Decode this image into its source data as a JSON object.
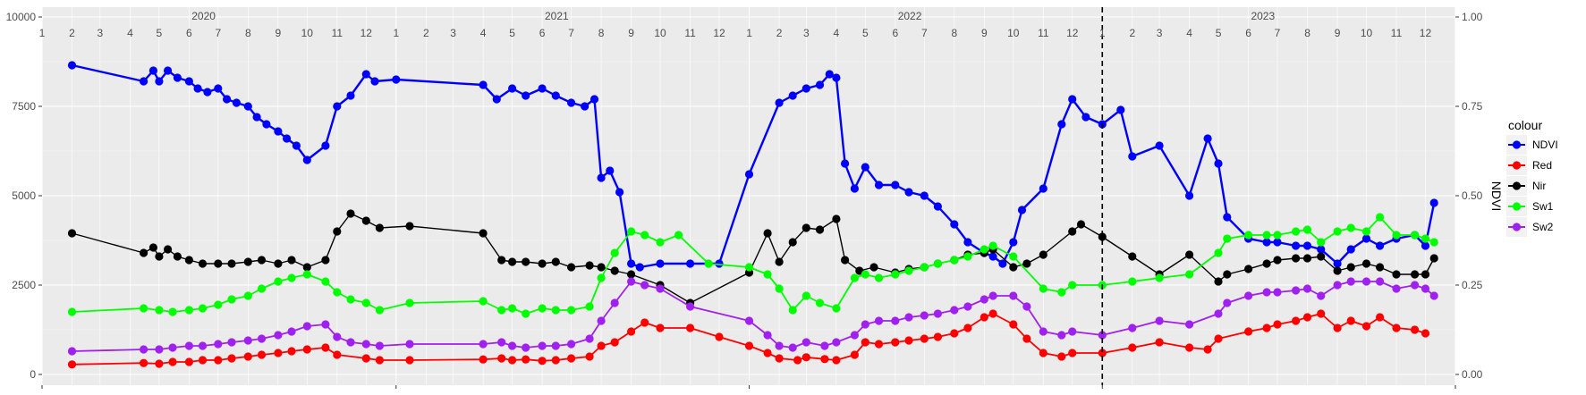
{
  "chart_data": {
    "type": "line",
    "title": "",
    "xlabel": "",
    "ylabel": "",
    "y2label": "NDVI",
    "xlim": [
      "2020-01-01",
      "2024-01-01"
    ],
    "ylim": [
      0,
      10000
    ],
    "y2lim": [
      0,
      1
    ],
    "y_ticks": [
      0,
      2500,
      5000,
      7500,
      10000
    ],
    "y_tick_labels": [
      "0",
      "2500",
      "5000",
      "7500",
      "10000"
    ],
    "y2_ticks": [
      0,
      0.25,
      0.5,
      0.75,
      1
    ],
    "y2_tick_labels": [
      "0.00",
      "0.25",
      "0.50",
      "0.75",
      "1.00"
    ],
    "years": [
      "2020",
      "2021",
      "2022",
      "2023"
    ],
    "months": [
      "1",
      "2",
      "3",
      "4",
      "5",
      "6",
      "7",
      "8",
      "9",
      "10",
      "11",
      "12"
    ],
    "vline_date": "2023-01-01",
    "grid": true,
    "legend_title": "colour",
    "legend_position": "right",
    "series": [
      {
        "name": "NDVI",
        "color": "#0000FF",
        "axis": "right",
        "x": [
          "2020-02-01",
          "2020-04-15",
          "2020-04-25",
          "2020-05-01",
          "2020-05-10",
          "2020-05-20",
          "2020-06-01",
          "2020-06-10",
          "2020-06-20",
          "2020-07-01",
          "2020-07-10",
          "2020-07-20",
          "2020-08-01",
          "2020-08-10",
          "2020-08-20",
          "2020-09-01",
          "2020-09-10",
          "2020-09-20",
          "2020-10-01",
          "2020-10-20",
          "2020-11-01",
          "2020-11-15",
          "2020-12-01",
          "2020-12-10",
          "2021-01-01",
          "2021-04-01",
          "2021-04-15",
          "2021-05-01",
          "2021-05-15",
          "2021-06-01",
          "2021-06-15",
          "2021-07-01",
          "2021-07-15",
          "2021-07-25",
          "2021-08-01",
          "2021-08-10",
          "2021-08-20",
          "2021-09-01",
          "2021-09-10",
          "2021-10-01",
          "2021-11-01",
          "2021-12-01",
          "2022-01-01",
          "2022-02-01",
          "2022-02-15",
          "2022-03-01",
          "2022-03-15",
          "2022-03-25",
          "2022-04-01",
          "2022-04-10",
          "2022-04-20",
          "2022-05-01",
          "2022-05-15",
          "2022-06-01",
          "2022-06-15",
          "2022-07-01",
          "2022-07-15",
          "2022-08-01",
          "2022-08-15",
          "2022-09-01",
          "2022-09-10",
          "2022-09-20",
          "2022-10-01",
          "2022-10-10",
          "2022-11-01",
          "2022-11-20",
          "2022-12-01",
          "2022-12-15",
          "2023-01-01",
          "2023-01-20",
          "2023-02-01",
          "2023-03-01",
          "2023-04-01",
          "2023-04-20",
          "2023-05-01",
          "2023-05-10",
          "2023-06-01",
          "2023-06-20",
          "2023-07-01",
          "2023-07-20",
          "2023-08-01",
          "2023-08-15",
          "2023-09-01",
          "2023-09-15",
          "2023-10-01",
          "2023-10-15",
          "2023-11-01",
          "2023-11-20",
          "2023-12-01",
          "2023-12-10"
        ],
        "values": [
          0.865,
          0.82,
          0.85,
          0.82,
          0.85,
          0.83,
          0.82,
          0.8,
          0.79,
          0.8,
          0.77,
          0.76,
          0.75,
          0.72,
          0.7,
          0.68,
          0.66,
          0.64,
          0.6,
          0.64,
          0.75,
          0.78,
          0.84,
          0.82,
          0.825,
          0.81,
          0.77,
          0.8,
          0.78,
          0.8,
          0.78,
          0.76,
          0.75,
          0.77,
          0.55,
          0.57,
          0.51,
          0.31,
          0.3,
          0.31,
          0.31,
          0.31,
          0.56,
          0.76,
          0.78,
          0.8,
          0.81,
          0.84,
          0.83,
          0.59,
          0.52,
          0.58,
          0.53,
          0.53,
          0.51,
          0.5,
          0.47,
          0.42,
          0.37,
          0.34,
          0.33,
          0.31,
          0.37,
          0.46,
          0.52,
          0.7,
          0.77,
          0.72,
          0.7,
          0.74,
          0.61,
          0.64,
          0.5,
          0.66,
          0.59,
          0.44,
          0.38,
          0.37,
          0.37,
          0.36,
          0.36,
          0.35,
          0.31,
          0.35,
          0.38,
          0.36,
          0.38,
          0.39,
          0.36,
          0.48
        ]
      },
      {
        "name": "Red",
        "color": "#FF0000",
        "axis": "left",
        "x": [
          "2020-02-01",
          "2020-04-15",
          "2020-05-01",
          "2020-05-15",
          "2020-06-01",
          "2020-06-15",
          "2020-07-01",
          "2020-07-15",
          "2020-08-01",
          "2020-08-15",
          "2020-09-01",
          "2020-09-15",
          "2020-10-01",
          "2020-10-20",
          "2020-11-01",
          "2020-12-01",
          "2020-12-15",
          "2021-01-15",
          "2021-04-01",
          "2021-04-20",
          "2021-05-01",
          "2021-05-15",
          "2021-06-01",
          "2021-06-15",
          "2021-07-01",
          "2021-07-20",
          "2021-08-01",
          "2021-08-15",
          "2021-09-01",
          "2021-09-15",
          "2021-10-01",
          "2021-11-01",
          "2021-12-01",
          "2022-01-01",
          "2022-01-20",
          "2022-02-01",
          "2022-02-20",
          "2022-03-01",
          "2022-03-20",
          "2022-04-01",
          "2022-04-20",
          "2022-05-01",
          "2022-05-15",
          "2022-06-01",
          "2022-06-15",
          "2022-07-01",
          "2022-07-15",
          "2022-08-01",
          "2022-08-15",
          "2022-09-01",
          "2022-09-10",
          "2022-10-01",
          "2022-10-15",
          "2022-11-01",
          "2022-11-20",
          "2022-12-01",
          "2023-01-01",
          "2023-02-01",
          "2023-03-01",
          "2023-04-01",
          "2023-04-20",
          "2023-05-01",
          "2023-06-01",
          "2023-06-20",
          "2023-07-01",
          "2023-07-20",
          "2023-08-01",
          "2023-08-15",
          "2023-09-01",
          "2023-09-15",
          "2023-10-01",
          "2023-10-15",
          "2023-11-01",
          "2023-11-20",
          "2023-12-01"
        ],
        "values": [
          280,
          320,
          300,
          350,
          350,
          400,
          400,
          450,
          500,
          550,
          600,
          650,
          700,
          750,
          550,
          450,
          400,
          400,
          420,
          450,
          400,
          420,
          380,
          400,
          450,
          500,
          800,
          900,
          1200,
          1450,
          1300,
          1300,
          1050,
          800,
          600,
          450,
          400,
          480,
          430,
          400,
          550,
          900,
          850,
          900,
          950,
          1000,
          1050,
          1150,
          1300,
          1600,
          1700,
          1400,
          1000,
          600,
          500,
          600,
          600,
          750,
          900,
          750,
          700,
          1000,
          1200,
          1300,
          1400,
          1500,
          1600,
          1700,
          1300,
          1500,
          1350,
          1600,
          1300,
          1250,
          1150
        ]
      },
      {
        "name": "Nir",
        "color": "#000000",
        "axis": "left",
        "x": [
          "2020-02-01",
          "2020-04-15",
          "2020-04-25",
          "2020-05-01",
          "2020-05-10",
          "2020-05-20",
          "2020-06-01",
          "2020-06-15",
          "2020-07-01",
          "2020-07-15",
          "2020-08-01",
          "2020-08-15",
          "2020-09-01",
          "2020-09-15",
          "2020-10-01",
          "2020-10-20",
          "2020-11-01",
          "2020-11-15",
          "2020-12-01",
          "2020-12-15",
          "2021-01-15",
          "2021-04-01",
          "2021-04-20",
          "2021-05-01",
          "2021-05-15",
          "2021-06-01",
          "2021-06-15",
          "2021-07-01",
          "2021-07-20",
          "2021-08-01",
          "2021-08-15",
          "2021-09-01",
          "2021-10-01",
          "2021-11-01",
          "2022-01-01",
          "2022-01-20",
          "2022-02-01",
          "2022-02-15",
          "2022-03-01",
          "2022-03-15",
          "2022-04-01",
          "2022-04-10",
          "2022-04-25",
          "2022-05-10",
          "2022-06-01",
          "2022-06-15",
          "2022-07-01",
          "2022-07-15",
          "2022-08-01",
          "2022-08-15",
          "2022-09-01",
          "2022-09-10",
          "2022-10-01",
          "2022-10-15",
          "2022-11-01",
          "2022-12-01",
          "2022-12-10",
          "2023-01-01",
          "2023-02-01",
          "2023-03-01",
          "2023-04-01",
          "2023-05-01",
          "2023-05-10",
          "2023-06-01",
          "2023-06-20",
          "2023-07-01",
          "2023-07-20",
          "2023-08-01",
          "2023-08-15",
          "2023-09-01",
          "2023-09-15",
          "2023-10-01",
          "2023-10-15",
          "2023-11-01",
          "2023-11-20",
          "2023-12-01",
          "2023-12-10"
        ],
        "values": [
          3950,
          3400,
          3550,
          3300,
          3500,
          3300,
          3200,
          3100,
          3100,
          3100,
          3150,
          3200,
          3100,
          3200,
          3000,
          3200,
          4000,
          4500,
          4300,
          4100,
          4150,
          3950,
          3200,
          3150,
          3150,
          3100,
          3150,
          3000,
          3050,
          3000,
          2900,
          2800,
          2500,
          2000,
          2850,
          3950,
          3150,
          3700,
          4100,
          4050,
          4350,
          3200,
          2900,
          3000,
          2850,
          2950,
          3000,
          3100,
          3200,
          3350,
          3400,
          3500,
          3000,
          3100,
          3350,
          4000,
          4200,
          3850,
          3300,
          2800,
          3350,
          2600,
          2800,
          2950,
          3100,
          3200,
          3250,
          3250,
          3300,
          2900,
          3000,
          3100,
          3000,
          2800,
          2800,
          2800,
          3250
        ]
      },
      {
        "name": "Sw1",
        "color": "#00FF00",
        "axis": "left",
        "x": [
          "2020-02-01",
          "2020-04-15",
          "2020-05-01",
          "2020-05-15",
          "2020-06-01",
          "2020-06-15",
          "2020-07-01",
          "2020-07-15",
          "2020-08-01",
          "2020-08-15",
          "2020-09-01",
          "2020-09-15",
          "2020-10-01",
          "2020-10-20",
          "2020-11-01",
          "2020-11-15",
          "2020-12-01",
          "2020-12-15",
          "2021-01-15",
          "2021-04-01",
          "2021-04-20",
          "2021-05-01",
          "2021-05-15",
          "2021-06-01",
          "2021-06-15",
          "2021-07-01",
          "2021-07-20",
          "2021-08-01",
          "2021-08-15",
          "2021-09-01",
          "2021-09-15",
          "2021-10-01",
          "2021-10-20",
          "2021-11-20",
          "2022-01-01",
          "2022-01-20",
          "2022-02-01",
          "2022-02-15",
          "2022-03-01",
          "2022-03-15",
          "2022-04-01",
          "2022-04-20",
          "2022-05-01",
          "2022-05-15",
          "2022-06-01",
          "2022-06-15",
          "2022-07-01",
          "2022-07-15",
          "2022-08-01",
          "2022-08-15",
          "2022-09-01",
          "2022-09-10",
          "2022-10-01",
          "2022-11-01",
          "2022-11-20",
          "2022-12-01",
          "2023-01-01",
          "2023-02-01",
          "2023-03-01",
          "2023-04-01",
          "2023-05-01",
          "2023-05-10",
          "2023-06-01",
          "2023-06-20",
          "2023-07-01",
          "2023-07-20",
          "2023-08-01",
          "2023-08-15",
          "2023-09-01",
          "2023-09-15",
          "2023-10-01",
          "2023-10-15",
          "2023-11-01",
          "2023-11-20",
          "2023-12-01",
          "2023-12-10"
        ],
        "values": [
          1750,
          1850,
          1800,
          1750,
          1800,
          1850,
          1950,
          2100,
          2200,
          2400,
          2600,
          2700,
          2800,
          2600,
          2300,
          2100,
          2000,
          1800,
          2000,
          2050,
          1800,
          1850,
          1700,
          1850,
          1800,
          1800,
          1900,
          2700,
          3400,
          4000,
          3900,
          3700,
          3900,
          3100,
          3000,
          2800,
          2400,
          1800,
          2200,
          2000,
          1850,
          2700,
          2800,
          2700,
          2800,
          2900,
          3000,
          3100,
          3200,
          3300,
          3500,
          3600,
          3300,
          2400,
          2300,
          2500,
          2500,
          2600,
          2700,
          2800,
          3400,
          3800,
          3900,
          3900,
          3900,
          4000,
          4050,
          3700,
          4000,
          4100,
          4000,
          4400,
          3900,
          3900,
          3800,
          3700
        ]
      },
      {
        "name": "Sw2",
        "color": "#A020F0",
        "axis": "left",
        "x": [
          "2020-02-01",
          "2020-04-15",
          "2020-05-01",
          "2020-05-15",
          "2020-06-01",
          "2020-06-15",
          "2020-07-01",
          "2020-07-15",
          "2020-08-01",
          "2020-08-15",
          "2020-09-01",
          "2020-09-15",
          "2020-10-01",
          "2020-10-20",
          "2020-11-01",
          "2020-11-15",
          "2020-12-01",
          "2020-12-15",
          "2021-01-15",
          "2021-04-01",
          "2021-04-20",
          "2021-05-01",
          "2021-05-15",
          "2021-06-01",
          "2021-06-15",
          "2021-07-01",
          "2021-07-20",
          "2021-08-01",
          "2021-08-15",
          "2021-09-01",
          "2021-09-15",
          "2021-10-01",
          "2021-11-01",
          "2022-01-01",
          "2022-01-20",
          "2022-02-01",
          "2022-02-15",
          "2022-03-01",
          "2022-03-20",
          "2022-04-01",
          "2022-04-20",
          "2022-05-01",
          "2022-05-15",
          "2022-06-01",
          "2022-06-15",
          "2022-07-01",
          "2022-07-15",
          "2022-08-01",
          "2022-08-15",
          "2022-09-01",
          "2022-09-10",
          "2022-10-01",
          "2022-10-15",
          "2022-11-01",
          "2022-11-20",
          "2022-12-01",
          "2023-01-01",
          "2023-02-01",
          "2023-03-01",
          "2023-04-01",
          "2023-05-01",
          "2023-05-10",
          "2023-06-01",
          "2023-06-20",
          "2023-07-01",
          "2023-07-20",
          "2023-08-01",
          "2023-08-15",
          "2023-09-01",
          "2023-09-15",
          "2023-10-01",
          "2023-10-15",
          "2023-11-01",
          "2023-11-20",
          "2023-12-01",
          "2023-12-10"
        ],
        "values": [
          650,
          700,
          700,
          750,
          800,
          800,
          850,
          900,
          950,
          1000,
          1100,
          1200,
          1350,
          1400,
          1050,
          900,
          850,
          800,
          850,
          850,
          900,
          800,
          750,
          800,
          800,
          850,
          1000,
          1500,
          2000,
          2600,
          2500,
          2400,
          1900,
          1500,
          1100,
          800,
          750,
          900,
          800,
          900,
          1100,
          1400,
          1500,
          1500,
          1600,
          1650,
          1700,
          1800,
          1900,
          2100,
          2200,
          2200,
          1900,
          1200,
          1100,
          1200,
          1100,
          1300,
          1500,
          1400,
          1700,
          2000,
          2200,
          2300,
          2300,
          2350,
          2400,
          2200,
          2500,
          2600,
          2600,
          2600,
          2400,
          2500,
          2400,
          2200
        ]
      }
    ]
  }
}
